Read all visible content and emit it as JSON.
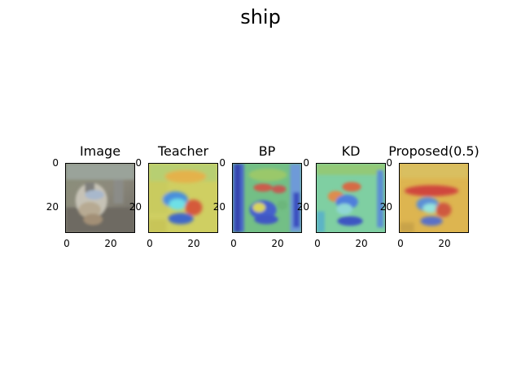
{
  "figure": {
    "suptitle": "ship",
    "panels": [
      {
        "id": "image",
        "title": "Image",
        "x_ticks": [
          "0",
          "20"
        ],
        "y_ticks": [
          "0",
          "20"
        ]
      },
      {
        "id": "teacher",
        "title": "Teacher",
        "x_ticks": [
          "0",
          "20"
        ],
        "y_ticks": [
          "0",
          "20"
        ]
      },
      {
        "id": "bp",
        "title": "BP",
        "x_ticks": [
          "0",
          "20"
        ],
        "y_ticks": [
          "0",
          "20"
        ]
      },
      {
        "id": "kd",
        "title": "KD",
        "x_ticks": [
          "0",
          "20"
        ],
        "y_ticks": [
          "0",
          "20"
        ]
      },
      {
        "id": "proposed",
        "title": "Proposed(0.5)",
        "x_ticks": [
          "0",
          "20"
        ],
        "y_ticks": [
          "0",
          "20"
        ]
      }
    ]
  }
}
